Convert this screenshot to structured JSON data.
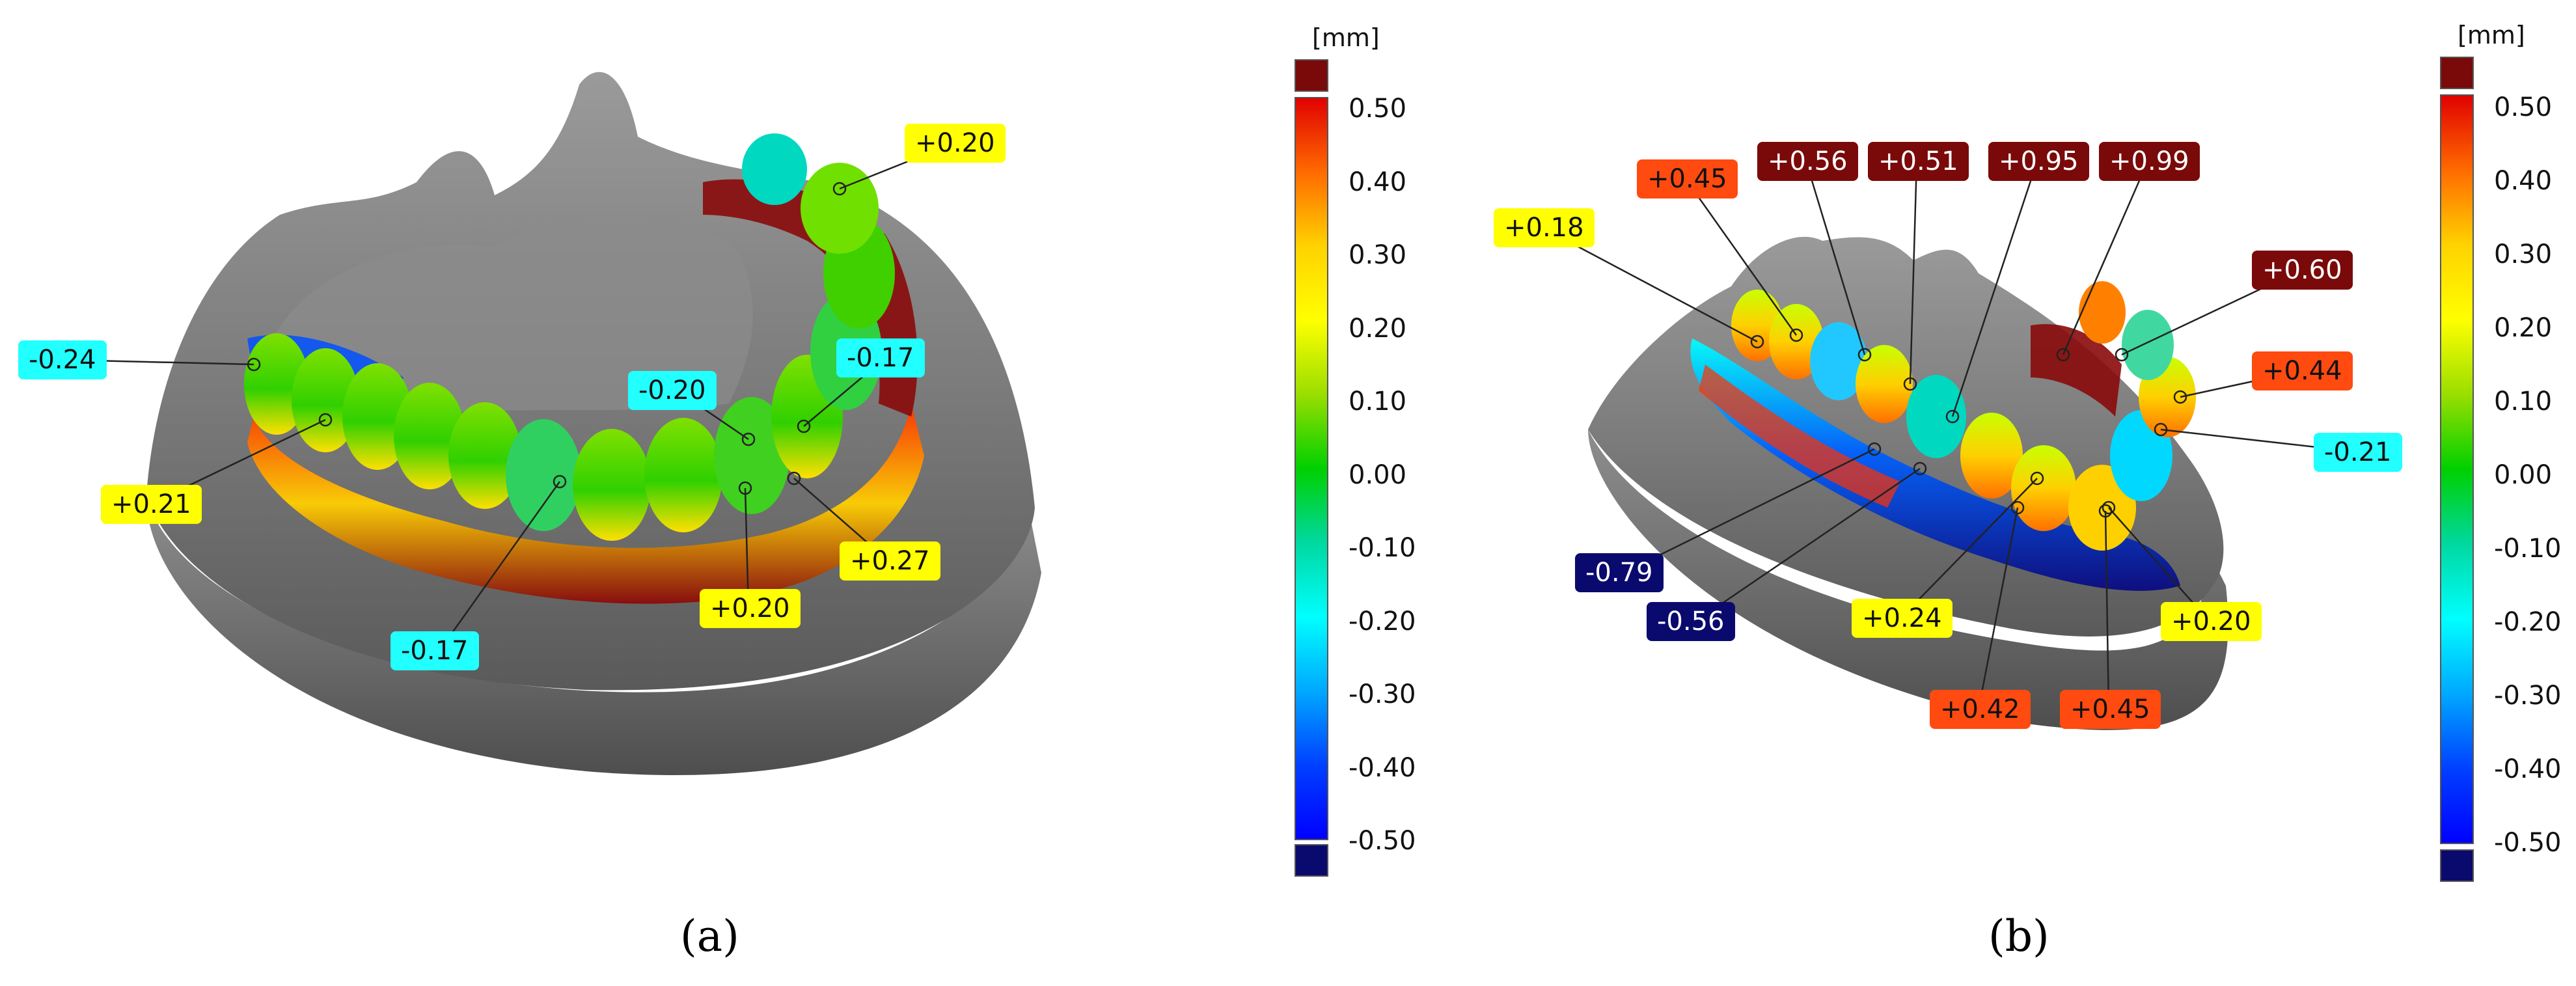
{
  "panels": [
    {
      "label": "(a)",
      "colorbar": {
        "unit": "[mm]",
        "ticks": [
          "0.50",
          "0.40",
          "0.30",
          "0.20",
          "0.10",
          "0.00",
          "-0.10",
          "-0.20",
          "-0.30",
          "-0.40",
          "-0.50"
        ],
        "gradient": [
          "#e00000",
          "#ff6a00",
          "#ffd200",
          "#ffff00",
          "#9ade00",
          "#00d000",
          "#00d8a0",
          "#00ffff",
          "#00a8ff",
          "#0040ff",
          "#0000ff"
        ],
        "overflow_high_color": "#7a0a0a",
        "overflow_low_color": "#0a0a6e"
      },
      "annotations": [
        {
          "text": "+0.20",
          "bg": "#ffff00"
        },
        {
          "text": "-0.24",
          "bg": "#22ffff"
        },
        {
          "text": "-0.20",
          "bg": "#22ffff"
        },
        {
          "text": "-0.17",
          "bg": "#22ffff"
        },
        {
          "text": "+0.21",
          "bg": "#ffff00"
        },
        {
          "text": "+0.27",
          "bg": "#ffff00"
        },
        {
          "text": "+0.20",
          "bg": "#ffff00"
        },
        {
          "text": "-0.17",
          "bg": "#22ffff"
        }
      ]
    },
    {
      "label": "(b)",
      "colorbar": {
        "unit": "[mm]",
        "ticks": [
          "0.50",
          "0.40",
          "0.30",
          "0.20",
          "0.10",
          "0.00",
          "-0.10",
          "-0.20",
          "-0.30",
          "-0.40",
          "-0.50"
        ],
        "gradient": [
          "#e00000",
          "#ff6a00",
          "#ffd200",
          "#ffff00",
          "#9ade00",
          "#00d000",
          "#00d8a0",
          "#00ffff",
          "#00a8ff",
          "#0040ff",
          "#0000ff"
        ],
        "overflow_high_color": "#7a0a0a",
        "overflow_low_color": "#0a0a6e"
      },
      "annotations": [
        {
          "text": "+0.45",
          "bg": "#ff4a10"
        },
        {
          "text": "+0.56",
          "bg": "#7a0a0a"
        },
        {
          "text": "+0.51",
          "bg": "#7a0a0a"
        },
        {
          "text": "+0.95",
          "bg": "#7a0a0a"
        },
        {
          "text": "+0.99",
          "bg": "#7a0a0a"
        },
        {
          "text": "+0.18",
          "bg": "#ffff00"
        },
        {
          "text": "+0.60",
          "bg": "#7a0a0a"
        },
        {
          "text": "+0.44",
          "bg": "#ff4a10"
        },
        {
          "text": "-0.21",
          "bg": "#22ffff"
        },
        {
          "text": "-0.79",
          "bg": "#0a0a6e"
        },
        {
          "text": "-0.56",
          "bg": "#0a0a6e"
        },
        {
          "text": "+0.24",
          "bg": "#ffff00"
        },
        {
          "text": "+0.20",
          "bg": "#ffff00"
        },
        {
          "text": "+0.42",
          "bg": "#ff4a10"
        },
        {
          "text": "+0.45",
          "bg": "#ff4a10"
        }
      ]
    }
  ]
}
